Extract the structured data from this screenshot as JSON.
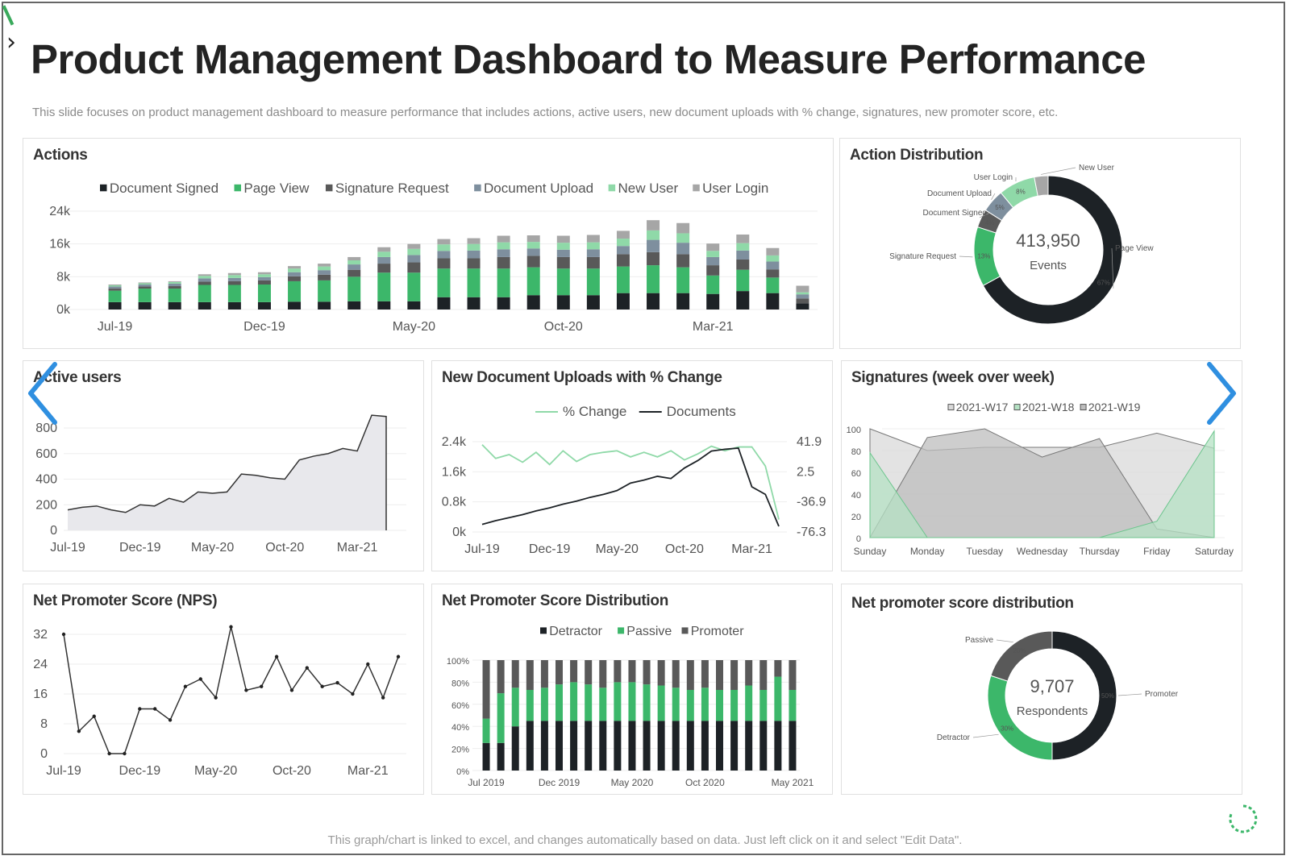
{
  "slide": {
    "title": "Product Management Dashboard to Measure Performance",
    "subtitle": "This slide focuses on product management dashboard to measure performance that includes actions, active users, new document uploads with % change, signatures, new promoter score, etc.",
    "footer": "This graph/chart is linked to excel, and changes automatically based on data. Just left click on it and select \"Edit Data\"."
  },
  "colors": {
    "dark": "#1d2226",
    "green": "#3cb76a",
    "gray": "#595959",
    "slate": "#7e8f9e",
    "lightgreen": "#8fd9a8",
    "lightgray": "#a6a6a6",
    "nav_arrow": "#2f8fe0"
  },
  "icons": {
    "left_nav": "chevron-left-icon",
    "right_nav": "chevron-right-icon",
    "brand": "chevron-right-icon",
    "loader": "refresh-icon"
  },
  "chart_data": [
    {
      "id": "actions",
      "type": "bar",
      "stacked": true,
      "title": "Actions",
      "legend_position": "top",
      "x_tick_labels": [
        "Jul-19",
        "Dec-19",
        "May-20",
        "Oct-20",
        "Mar-21"
      ],
      "x_tick_indices": [
        0,
        5,
        10,
        15,
        20
      ],
      "y_ticks": [
        "0k",
        "8k",
        "16k",
        "24k"
      ],
      "ylim": [
        0,
        24000
      ],
      "grid": true,
      "series": [
        {
          "name": "Document Signed",
          "color": "#1d2226",
          "values": [
            1800,
            1800,
            1800,
            1800,
            1800,
            1800,
            1900,
            1900,
            2000,
            2000,
            2000,
            3000,
            3000,
            3000,
            3500,
            3500,
            3500,
            4000,
            4000,
            4000,
            3800,
            4500,
            4000,
            1500
          ]
        },
        {
          "name": "Page View",
          "color": "#3cb76a",
          "values": [
            2800,
            3300,
            3300,
            4200,
            4200,
            4300,
            5000,
            5200,
            6000,
            7000,
            7000,
            7000,
            7000,
            7000,
            6800,
            6500,
            6500,
            6500,
            6800,
            6300,
            4500,
            5200,
            3800,
            0
          ]
        },
        {
          "name": "Signature Request",
          "color": "#595959",
          "values": [
            500,
            500,
            600,
            800,
            900,
            1000,
            1200,
            1400,
            1700,
            2200,
            2500,
            2500,
            2500,
            2800,
            2800,
            2800,
            2800,
            3000,
            3200,
            3200,
            2500,
            2500,
            2000,
            1200
          ]
        },
        {
          "name": "Document Upload",
          "color": "#7e8f9e",
          "values": [
            500,
            500,
            600,
            800,
            800,
            800,
            1000,
            1100,
            1300,
            1600,
            1800,
            1800,
            1900,
            1900,
            1800,
            1800,
            1900,
            2000,
            3000,
            2800,
            2000,
            2200,
            1900,
            1000
          ]
        },
        {
          "name": "New User",
          "color": "#8fd9a8",
          "values": [
            300,
            300,
            400,
            600,
            700,
            700,
            900,
            900,
            1000,
            1300,
            1500,
            1600,
            1600,
            1700,
            1600,
            1700,
            1700,
            1800,
            2300,
            2300,
            1500,
            1800,
            1500,
            500
          ]
        },
        {
          "name": "User Login",
          "color": "#a6a6a6",
          "values": [
            200,
            200,
            200,
            400,
            500,
            500,
            600,
            700,
            800,
            1100,
            1200,
            1300,
            1400,
            1600,
            1600,
            1700,
            1800,
            1900,
            2500,
            2500,
            1800,
            2100,
            1800,
            1600
          ]
        }
      ]
    },
    {
      "id": "action-distribution",
      "type": "pie",
      "donut": true,
      "title": "Action Distribution",
      "center_value": "413,950",
      "center_label": "Events",
      "slices": [
        {
          "name": "Page View",
          "value": 67,
          "label": "67%",
          "color": "#1d2226"
        },
        {
          "name": "Signature Request",
          "value": 13,
          "label": "13%",
          "color": "#3cb76a"
        },
        {
          "name": "Document Signed",
          "value": 4,
          "label": "4%",
          "color": "#595959"
        },
        {
          "name": "Document Upload",
          "value": 5,
          "label": "5%",
          "color": "#7e8f9e"
        },
        {
          "name": "User Login",
          "value": 8,
          "label": "8%",
          "color": "#8fd9a8"
        },
        {
          "name": "New User",
          "value": 3,
          "label": "",
          "color": "#a6a6a6"
        }
      ]
    },
    {
      "id": "active-users",
      "type": "area",
      "title": "Active users",
      "x_tick_labels": [
        "Jul-19",
        "Dec-19",
        "May-20",
        "Oct-20",
        "Mar-21"
      ],
      "x_tick_indices": [
        0,
        5,
        10,
        15,
        20
      ],
      "y_ticks": [
        "0",
        "200",
        "400",
        "600",
        "800"
      ],
      "ylim": [
        0,
        900
      ],
      "values": [
        160,
        180,
        190,
        160,
        140,
        200,
        190,
        250,
        220,
        300,
        290,
        300,
        440,
        430,
        410,
        400,
        550,
        580,
        600,
        640,
        620,
        900,
        890
      ]
    },
    {
      "id": "new-document-uploads",
      "type": "line",
      "title": "New Document Uploads with % Change",
      "legend_position": "top",
      "x_tick_labels": [
        "Jul-19",
        "Dec-19",
        "May-20",
        "Oct-20",
        "Mar-21"
      ],
      "x_tick_indices": [
        0,
        5,
        10,
        15,
        20
      ],
      "y_ticks_left": [
        "0k",
        "0.8k",
        "1.6k",
        "2.4k"
      ],
      "ylim_left": [
        0,
        2400
      ],
      "y_ticks_right": [
        "-76.3",
        "-36.9",
        "2.5",
        "41.9"
      ],
      "ylim_right": [
        -76.3,
        41.9
      ],
      "series": [
        {
          "name": "% Change",
          "color": "#8fd9a8",
          "axis": "right",
          "values": [
            38,
            20,
            25,
            15,
            28,
            12,
            30,
            16,
            25,
            28,
            30,
            22,
            28,
            22,
            30,
            18,
            26,
            36,
            30,
            35,
            35,
            10,
            -60
          ]
        },
        {
          "name": "Documents",
          "color": "#1d2226",
          "axis": "left",
          "values": [
            200,
            300,
            380,
            460,
            560,
            640,
            740,
            820,
            920,
            1000,
            1100,
            1300,
            1380,
            1480,
            1420,
            1700,
            1900,
            2150,
            2200,
            2230,
            1200,
            1000,
            150
          ]
        }
      ]
    },
    {
      "id": "signatures-wow",
      "type": "area",
      "title": "Signatures (week over week)",
      "legend_position": "top",
      "categories": [
        "Sunday",
        "Monday",
        "Tuesday",
        "Wednesday",
        "Thursday",
        "Friday",
        "Saturday"
      ],
      "y_ticks": [
        "0",
        "20",
        "40",
        "60",
        "80",
        "100"
      ],
      "ylim": [
        0,
        100
      ],
      "series": [
        {
          "name": "2021-W17",
          "color": "#d9d9d9",
          "values": [
            100,
            80,
            83,
            83,
            83,
            96,
            82
          ]
        },
        {
          "name": "2021-W18",
          "color": "#b5e2c4",
          "values": [
            78,
            0,
            0,
            0,
            0,
            15,
            98
          ]
        },
        {
          "name": "2021-W19",
          "color": "#bdbdbd",
          "values": [
            0,
            92,
            100,
            74,
            91,
            8,
            0
          ]
        }
      ]
    },
    {
      "id": "nps",
      "type": "line",
      "title": "Net Promoter Score (NPS)",
      "x_tick_labels": [
        "Jul-19",
        "Dec-19",
        "May-20",
        "Oct-20",
        "Mar-21"
      ],
      "x_tick_indices": [
        0,
        5,
        10,
        15,
        20
      ],
      "y_ticks": [
        "0",
        "8",
        "16",
        "24",
        "32"
      ],
      "ylim": [
        0,
        36
      ],
      "values": [
        32,
        6,
        10,
        0,
        0,
        12,
        12,
        9,
        18,
        20,
        15,
        34,
        17,
        18,
        26,
        17,
        23,
        18,
        19,
        16,
        24,
        15,
        26
      ]
    },
    {
      "id": "nps-distribution",
      "type": "bar",
      "stacked": true,
      "percent": true,
      "title": "Net Promoter Score Distribution",
      "legend_position": "top",
      "x_tick_labels": [
        "Jul 2019",
        "Dec 2019",
        "May 2020",
        "Oct 2020",
        "May 2021"
      ],
      "x_tick_indices": [
        0,
        5,
        10,
        15,
        21
      ],
      "y_ticks": [
        "0%",
        "20%",
        "40%",
        "60%",
        "80%",
        "100%"
      ],
      "series": [
        {
          "name": "Detractor",
          "color": "#1d2226",
          "values": [
            25,
            25,
            40,
            45,
            45,
            45,
            45,
            45,
            45,
            45,
            45,
            45,
            45,
            45,
            45,
            45,
            45,
            45,
            45,
            45,
            45,
            45
          ]
        },
        {
          "name": "Passive",
          "color": "#3cb76a",
          "values": [
            22,
            45,
            35,
            28,
            30,
            33,
            35,
            33,
            30,
            35,
            35,
            33,
            32,
            30,
            28,
            30,
            28,
            28,
            32,
            28,
            40,
            28
          ]
        },
        {
          "name": "Promoter",
          "color": "#595959",
          "values": [
            53,
            30,
            25,
            27,
            25,
            22,
            20,
            22,
            25,
            20,
            20,
            22,
            23,
            25,
            27,
            25,
            27,
            27,
            23,
            27,
            15,
            27
          ]
        }
      ]
    },
    {
      "id": "nps-donut",
      "type": "pie",
      "donut": true,
      "title": "Net promoter score distribution",
      "center_value": "9,707",
      "center_label": "Respondents",
      "slices": [
        {
          "name": "Promoter",
          "value": 50,
          "label": "50%",
          "color": "#1d2226"
        },
        {
          "name": "Detractor",
          "value": 30,
          "label": "30%",
          "color": "#3cb76a"
        },
        {
          "name": "Passive",
          "value": 20,
          "label": "20%",
          "color": "#595959"
        }
      ]
    }
  ]
}
